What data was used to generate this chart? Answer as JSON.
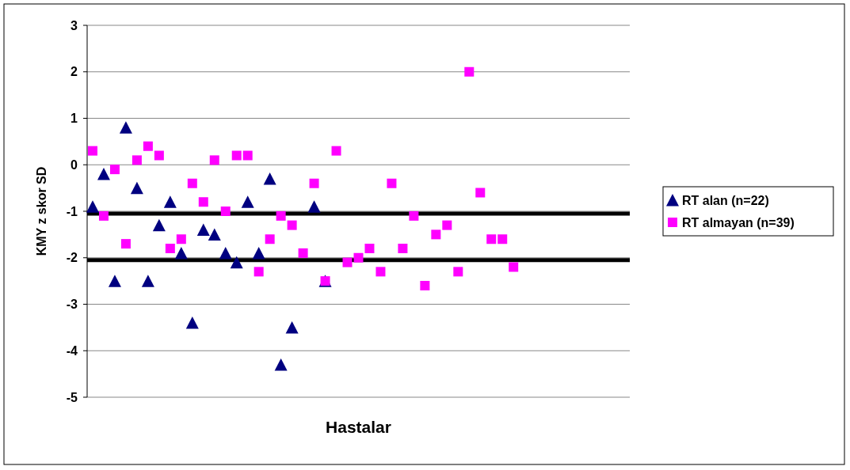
{
  "chart_data": {
    "type": "scatter",
    "xlabel": "Hastalar",
    "ylabel": "KMY z skor SD",
    "categories": [
      null,
      null,
      null,
      null,
      null,
      null,
      null,
      null,
      null,
      null,
      null,
      null,
      null,
      null,
      null,
      null,
      null,
      null,
      null,
      null,
      null,
      null,
      null,
      null,
      null,
      null,
      null,
      null,
      null,
      null,
      null,
      null,
      null,
      null,
      null,
      null,
      null,
      null,
      null,
      null,
      null,
      null,
      null,
      null,
      null,
      null,
      null,
      null,
      null
    ],
    "ylim": [
      -5,
      3
    ],
    "yticks": [
      -5,
      -4,
      -3,
      -2,
      -1,
      0,
      1,
      2,
      3
    ],
    "grid": "y",
    "legend": "right",
    "tick_labels": "y",
    "series": [
      {
        "name": "RT alan (n=22)",
        "color": "#000080",
        "marker": "triangle",
        "values": [
          -0.9,
          -0.2,
          -2.5,
          0.8,
          -0.5,
          -2.5,
          -1.3,
          -0.8,
          -1.9,
          -3.4,
          -1.4,
          -1.5,
          -1.9,
          -2.1,
          -0.8,
          -1.9,
          -0.3,
          -4.3,
          -3.5,
          null,
          -0.9,
          -2.5,
          null,
          null,
          null,
          null,
          null,
          null,
          null,
          null,
          null,
          null,
          null,
          null,
          null,
          null,
          null,
          null,
          null,
          null,
          null,
          null,
          null,
          null,
          null,
          null,
          null,
          null,
          null
        ]
      },
      {
        "name": "RT almayan (n=39)",
        "color": "#ff00ff",
        "marker": "square",
        "values": [
          0.3,
          -1.1,
          -0.1,
          -1.7,
          0.1,
          0.4,
          0.2,
          -1.8,
          -1.6,
          -0.4,
          -0.8,
          0.1,
          -1.0,
          0.2,
          0.2,
          -2.3,
          -1.6,
          -1.1,
          -1.3,
          -1.9,
          -0.4,
          -2.5,
          0.3,
          -2.1,
          -2.0,
          -1.8,
          -2.3,
          -0.4,
          -1.8,
          -1.1,
          -2.6,
          -1.5,
          -1.3,
          -2.3,
          2.0,
          -0.6,
          -1.6,
          -1.6,
          -2.2,
          null,
          null,
          null,
          null,
          null,
          null,
          null,
          null,
          null,
          null
        ]
      }
    ],
    "ref_lines": [
      {
        "axis": "y",
        "value": -1.05,
        "color": "#000000"
      },
      {
        "axis": "y",
        "value": -2.05,
        "color": "#000000"
      }
    ]
  }
}
